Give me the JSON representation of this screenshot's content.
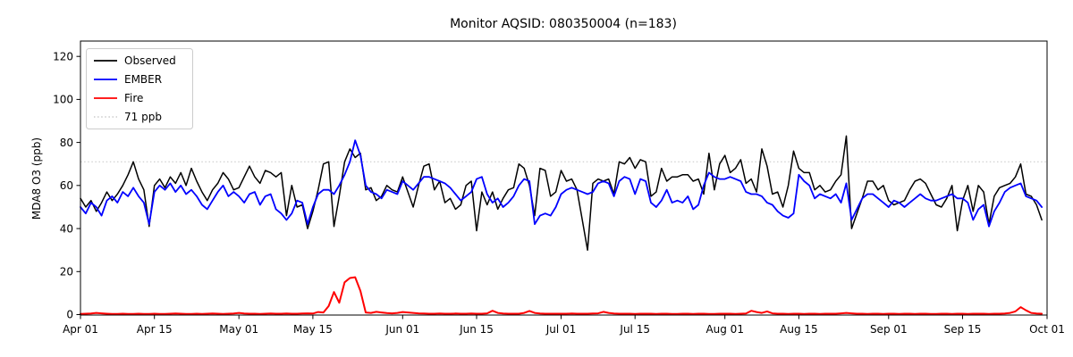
{
  "chart_data": {
    "type": "line",
    "title": "Monitor AQSID: 080350004 (n=183)",
    "xlabel": "",
    "ylabel": "MDA8 O3 (ppb)",
    "n_points": 183,
    "x_start": "Apr 01",
    "x_end": "Oct 01",
    "x_total_days": 183,
    "ylim": [
      0,
      127
    ],
    "y_ticks": [
      0,
      20,
      40,
      60,
      80,
      100,
      120
    ],
    "x_ticks": [
      {
        "day": 0,
        "label": "Apr 01"
      },
      {
        "day": 14,
        "label": "Apr 15"
      },
      {
        "day": 30,
        "label": "May 01"
      },
      {
        "day": 44,
        "label": "May 15"
      },
      {
        "day": 61,
        "label": "Jun 01"
      },
      {
        "day": 75,
        "label": "Jun 15"
      },
      {
        "day": 91,
        "label": "Jul 01"
      },
      {
        "day": 105,
        "label": "Jul 15"
      },
      {
        "day": 122,
        "label": "Aug 01"
      },
      {
        "day": 136,
        "label": "Aug 15"
      },
      {
        "day": 153,
        "label": "Sep 01"
      },
      {
        "day": 167,
        "label": "Sep 15"
      },
      {
        "day": 183,
        "label": "Oct 01"
      }
    ],
    "threshold": {
      "value": 71,
      "label": "71 ppb",
      "color": "#cccccc",
      "style": "dotted"
    },
    "legend": [
      {
        "label": "Observed",
        "color": "#000000",
        "style": "solid"
      },
      {
        "label": "EMBER",
        "color": "#0000ff",
        "style": "solid"
      },
      {
        "label": "Fire",
        "color": "#ff0000",
        "style": "solid"
      },
      {
        "label": "71 ppb",
        "color": "#cccccc",
        "style": "dotted"
      }
    ],
    "legend_position": "upper left",
    "grid": false,
    "series": [
      {
        "name": "Observed",
        "color": "#000000",
        "linewidth": 1.5,
        "values": [
          54,
          50,
          53,
          48,
          52,
          57,
          53,
          56,
          60,
          65,
          71,
          63,
          58,
          41,
          60,
          63,
          59,
          64,
          61,
          66,
          60,
          68,
          62,
          57,
          53,
          58,
          61,
          66,
          63,
          58,
          59,
          64,
          69,
          64,
          61,
          67,
          66,
          64,
          66,
          46,
          60,
          50,
          51,
          40,
          48,
          58,
          70,
          71,
          41,
          55,
          71,
          77,
          73,
          75,
          58,
          59,
          53,
          55,
          60,
          58,
          57,
          64,
          57,
          50,
          60,
          69,
          70,
          58,
          62,
          52,
          54,
          49,
          51,
          60,
          62,
          39,
          57,
          51,
          57,
          49,
          54,
          58,
          59,
          70,
          68,
          60,
          46,
          68,
          67,
          55,
          57,
          67,
          62,
          63,
          58,
          44,
          30,
          61,
          63,
          62,
          63,
          56,
          71,
          70,
          73,
          68,
          72,
          71,
          55,
          57,
          68,
          62,
          64,
          64,
          65,
          65,
          62,
          63,
          56,
          75,
          58,
          70,
          74,
          66,
          68,
          72,
          61,
          63,
          57,
          77,
          69,
          56,
          57,
          50,
          60,
          76,
          68,
          66,
          66,
          58,
          60,
          57,
          58,
          62,
          65,
          83,
          40,
          47,
          54,
          62,
          62,
          58,
          60,
          53,
          51,
          52,
          53,
          58,
          62,
          63,
          61,
          56,
          51,
          50,
          54,
          60,
          39,
          53,
          60,
          48,
          60,
          57,
          42,
          55,
          59,
          60,
          61,
          64,
          70,
          56,
          55,
          51,
          44
        ]
      },
      {
        "name": "EMBER",
        "color": "#0000ff",
        "linewidth": 1.8,
        "values": [
          50,
          47,
          52,
          50,
          46,
          53,
          55,
          52,
          57,
          55,
          59,
          55,
          52,
          42,
          57,
          60,
          58,
          61,
          57,
          60,
          56,
          58,
          55,
          51,
          49,
          53,
          57,
          60,
          55,
          57,
          55,
          52,
          56,
          57,
          51,
          55,
          56,
          49,
          47,
          44,
          47,
          53,
          52,
          42,
          50,
          56,
          58,
          58,
          56,
          60,
          65,
          71,
          81,
          74,
          60,
          57,
          56,
          54,
          58,
          57,
          56,
          62,
          60,
          58,
          61,
          64,
          64,
          63,
          62,
          61,
          59,
          56,
          53,
          55,
          57,
          63,
          64,
          56,
          52,
          54,
          50,
          52,
          55,
          60,
          63,
          62,
          42,
          46,
          47,
          46,
          50,
          56,
          58,
          59,
          58,
          57,
          56,
          57,
          61,
          62,
          61,
          55,
          62,
          64,
          63,
          56,
          63,
          62,
          52,
          50,
          53,
          58,
          52,
          53,
          52,
          55,
          49,
          51,
          60,
          66,
          64,
          63,
          63,
          64,
          63,
          62,
          57,
          56,
          56,
          55,
          52,
          51,
          48,
          46,
          45,
          47,
          65,
          62,
          60,
          54,
          56,
          55,
          54,
          56,
          52,
          61,
          44,
          49,
          54,
          56,
          56,
          54,
          52,
          50,
          53,
          52,
          50,
          52,
          54,
          56,
          54,
          53,
          53,
          54,
          55,
          56,
          54,
          54,
          52,
          44,
          49,
          51,
          41,
          48,
          52,
          57,
          59,
          60,
          61,
          55,
          54,
          53,
          50
        ]
      },
      {
        "name": "Fire",
        "color": "#ff0000",
        "linewidth": 2,
        "values": [
          0.3,
          0.4,
          0.5,
          0.8,
          0.6,
          0.4,
          0.3,
          0.3,
          0.4,
          0.3,
          0.3,
          0.4,
          0.3,
          0.3,
          0.4,
          0.3,
          0.3,
          0.4,
          0.5,
          0.4,
          0.3,
          0.3,
          0.4,
          0.3,
          0.4,
          0.5,
          0.4,
          0.3,
          0.4,
          0.5,
          0.8,
          0.5,
          0.4,
          0.4,
          0.3,
          0.4,
          0.5,
          0.4,
          0.4,
          0.5,
          0.4,
          0.4,
          0.5,
          0.6,
          0.5,
          1.2,
          1.0,
          4.0,
          10.5,
          5.5,
          15.0,
          17.0,
          17.4,
          11.0,
          1.0,
          0.8,
          1.3,
          1.0,
          0.7,
          0.6,
          0.8,
          1.2,
          1.0,
          0.8,
          0.6,
          0.5,
          0.4,
          0.4,
          0.5,
          0.4,
          0.4,
          0.5,
          0.4,
          0.4,
          0.5,
          0.4,
          0.4,
          0.6,
          1.8,
          0.8,
          0.5,
          0.4,
          0.4,
          0.4,
          0.8,
          1.7,
          0.8,
          0.5,
          0.4,
          0.4,
          0.4,
          0.4,
          0.4,
          0.5,
          0.4,
          0.4,
          0.4,
          0.5,
          0.6,
          1.3,
          0.8,
          0.5,
          0.4,
          0.4,
          0.4,
          0.3,
          0.4,
          0.4,
          0.4,
          0.3,
          0.4,
          0.4,
          0.3,
          0.3,
          0.4,
          0.4,
          0.3,
          0.4,
          0.4,
          0.3,
          0.3,
          0.4,
          0.4,
          0.4,
          0.3,
          0.4,
          0.5,
          1.8,
          1.2,
          0.8,
          1.5,
          0.6,
          0.4,
          0.4,
          0.3,
          0.4,
          0.4,
          0.3,
          0.4,
          0.4,
          0.3,
          0.4,
          0.4,
          0.4,
          0.6,
          0.8,
          0.6,
          0.4,
          0.4,
          0.3,
          0.4,
          0.4,
          0.3,
          0.4,
          0.4,
          0.3,
          0.4,
          0.4,
          0.3,
          0.4,
          0.4,
          0.3,
          0.3,
          0.4,
          0.4,
          0.3,
          0.4,
          0.4,
          0.3,
          0.4,
          0.4,
          0.4,
          0.3,
          0.4,
          0.4,
          0.5,
          0.8,
          1.5,
          3.5,
          2.0,
          0.8,
          0.5,
          0.4
        ]
      }
    ]
  }
}
